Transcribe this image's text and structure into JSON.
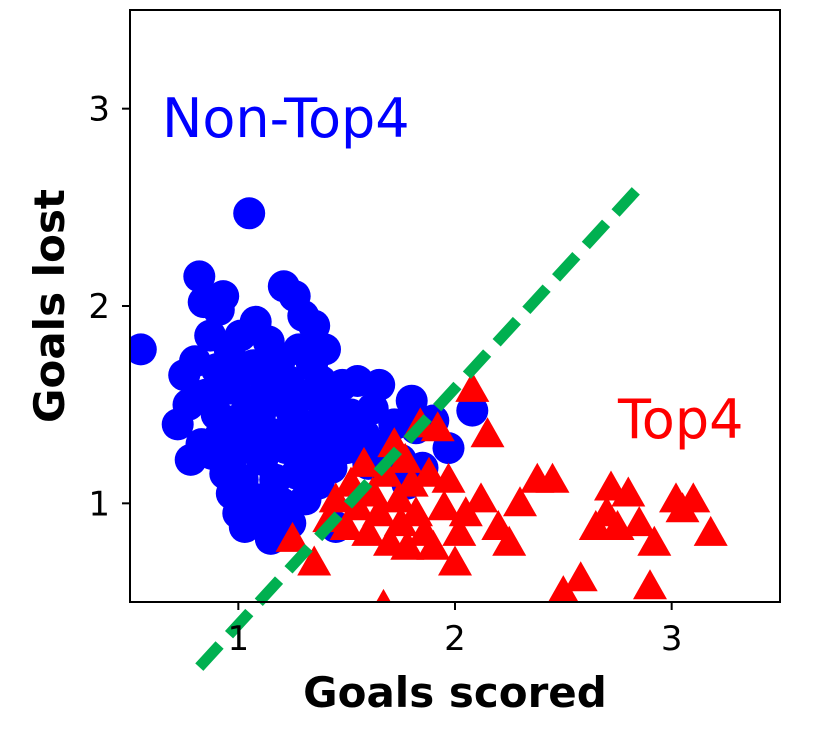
{
  "chart_data": {
    "type": "scatter",
    "title": "",
    "xlabel": "Goals scored",
    "ylabel": "Goals lost",
    "xlim": [
      0.5,
      3.5
    ],
    "ylim": [
      0.5,
      3.5
    ],
    "xticks": [
      1,
      2,
      3
    ],
    "yticks": [
      1,
      2,
      3
    ],
    "grid": false,
    "colors": {
      "non_top4": "#0000ff",
      "top4": "#ff0000",
      "boundary": "#00b050"
    },
    "annotations": [
      {
        "text": "Non-Top4",
        "color": "#0000ff"
      },
      {
        "text": "Top4",
        "color": "#ff0000"
      }
    ],
    "boundary_line": {
      "style": "dashed",
      "points": [
        [
          0.82,
          0.17
        ],
        [
          2.84,
          2.59
        ]
      ]
    },
    "series": [
      {
        "marker": "circle",
        "color": "#0000ff",
        "points": [
          [
            0.55,
            1.78
          ],
          [
            0.72,
            1.4
          ],
          [
            0.75,
            1.65
          ],
          [
            0.77,
            1.5
          ],
          [
            0.78,
            1.22
          ],
          [
            0.8,
            1.72
          ],
          [
            0.82,
            2.15
          ],
          [
            0.83,
            1.3
          ],
          [
            0.84,
            2.02
          ],
          [
            0.85,
            1.55
          ],
          [
            0.87,
            1.85
          ],
          [
            0.88,
            1.25
          ],
          [
            0.9,
            1.45
          ],
          [
            0.9,
            1.68
          ],
          [
            0.91,
            1.98
          ],
          [
            0.92,
            1.35
          ],
          [
            0.93,
            2.05
          ],
          [
            0.94,
            1.15
          ],
          [
            0.95,
            1.58
          ],
          [
            0.96,
            1.78
          ],
          [
            0.97,
            1.05
          ],
          [
            0.98,
            1.25
          ],
          [
            0.99,
            1.42
          ],
          [
            1.0,
            0.95
          ],
          [
            1.0,
            1.65
          ],
          [
            1.01,
            1.85
          ],
          [
            1.02,
            1.12
          ],
          [
            1.03,
            0.88
          ],
          [
            1.04,
            1.52
          ],
          [
            1.05,
            2.47
          ],
          [
            1.06,
            1.32
          ],
          [
            1.07,
            1.7
          ],
          [
            1.08,
            1.92
          ],
          [
            1.09,
            1.02
          ],
          [
            1.1,
            1.45
          ],
          [
            1.11,
            1.22
          ],
          [
            1.12,
            0.95
          ],
          [
            1.13,
            1.6
          ],
          [
            1.14,
            1.82
          ],
          [
            1.15,
            0.82
          ],
          [
            1.16,
            1.35
          ],
          [
            1.17,
            1.12
          ],
          [
            1.18,
            1.52
          ],
          [
            1.19,
            1.72
          ],
          [
            1.2,
            1.0
          ],
          [
            1.21,
            2.1
          ],
          [
            1.22,
            1.28
          ],
          [
            1.23,
            1.62
          ],
          [
            1.24,
            0.9
          ],
          [
            1.25,
            1.45
          ],
          [
            1.26,
            2.05
          ],
          [
            1.27,
            1.15
          ],
          [
            1.28,
            1.78
          ],
          [
            1.29,
            1.35
          ],
          [
            1.3,
            1.95
          ],
          [
            1.31,
            1.02
          ],
          [
            1.32,
            1.55
          ],
          [
            1.33,
            1.25
          ],
          [
            1.34,
            1.7
          ],
          [
            1.35,
            1.9
          ],
          [
            1.36,
            1.4
          ],
          [
            1.37,
            1.1
          ],
          [
            1.38,
            1.62
          ],
          [
            1.4,
            1.78
          ],
          [
            1.41,
            1.3
          ],
          [
            1.42,
            1.52
          ],
          [
            1.43,
            1.18
          ],
          [
            1.45,
            0.88
          ],
          [
            1.46,
            1.42
          ],
          [
            1.48,
            1.6
          ],
          [
            1.5,
            1.28
          ],
          [
            1.52,
            1.45
          ],
          [
            1.55,
            1.62
          ],
          [
            1.58,
            1.35
          ],
          [
            1.6,
            1.2
          ],
          [
            1.62,
            1.48
          ],
          [
            1.65,
            1.6
          ],
          [
            1.68,
            1.3
          ],
          [
            1.72,
            1.4
          ],
          [
            1.75,
            1.22
          ],
          [
            1.78,
            1.1
          ],
          [
            1.8,
            1.52
          ],
          [
            1.82,
            1.38
          ],
          [
            1.85,
            1.18
          ],
          [
            1.9,
            1.42
          ],
          [
            1.97,
            1.28
          ],
          [
            2.08,
            1.47
          ]
        ]
      },
      {
        "marker": "triangle",
        "color": "#ff0000",
        "points": [
          [
            1.25,
            0.82
          ],
          [
            1.35,
            0.7
          ],
          [
            1.42,
            0.92
          ],
          [
            1.45,
            1.02
          ],
          [
            1.5,
            0.88
          ],
          [
            1.52,
            1.1
          ],
          [
            1.55,
            0.98
          ],
          [
            1.58,
            1.2
          ],
          [
            1.6,
            0.85
          ],
          [
            1.62,
            1.05
          ],
          [
            1.65,
            0.95
          ],
          [
            1.67,
            0.48
          ],
          [
            1.68,
            1.15
          ],
          [
            1.7,
            0.8
          ],
          [
            1.72,
            1.3
          ],
          [
            1.74,
            1.02
          ],
          [
            1.75,
            0.9
          ],
          [
            1.77,
            1.22
          ],
          [
            1.78,
            0.78
          ],
          [
            1.8,
            1.1
          ],
          [
            1.82,
            0.95
          ],
          [
            1.84,
            1.4
          ],
          [
            1.86,
            0.85
          ],
          [
            1.88,
            1.15
          ],
          [
            1.9,
            0.78
          ],
          [
            1.92,
            1.38
          ],
          [
            1.95,
            0.98
          ],
          [
            1.97,
            1.12
          ],
          [
            2.0,
            0.7
          ],
          [
            2.02,
            0.85
          ],
          [
            2.05,
            0.95
          ],
          [
            2.08,
            1.58
          ],
          [
            2.12,
            1.02
          ],
          [
            2.15,
            1.35
          ],
          [
            2.2,
            0.88
          ],
          [
            2.25,
            0.8
          ],
          [
            2.3,
            1.0
          ],
          [
            2.38,
            1.12
          ],
          [
            2.45,
            1.12
          ],
          [
            2.5,
            0.55
          ],
          [
            2.58,
            0.62
          ],
          [
            2.65,
            0.88
          ],
          [
            2.7,
            0.95
          ],
          [
            2.72,
            1.08
          ],
          [
            2.75,
            0.88
          ],
          [
            2.8,
            1.05
          ],
          [
            2.85,
            0.9
          ],
          [
            2.9,
            0.58
          ],
          [
            2.92,
            0.8
          ],
          [
            3.02,
            1.02
          ],
          [
            3.05,
            0.97
          ],
          [
            3.1,
            1.02
          ],
          [
            3.18,
            0.85
          ]
        ]
      }
    ]
  }
}
